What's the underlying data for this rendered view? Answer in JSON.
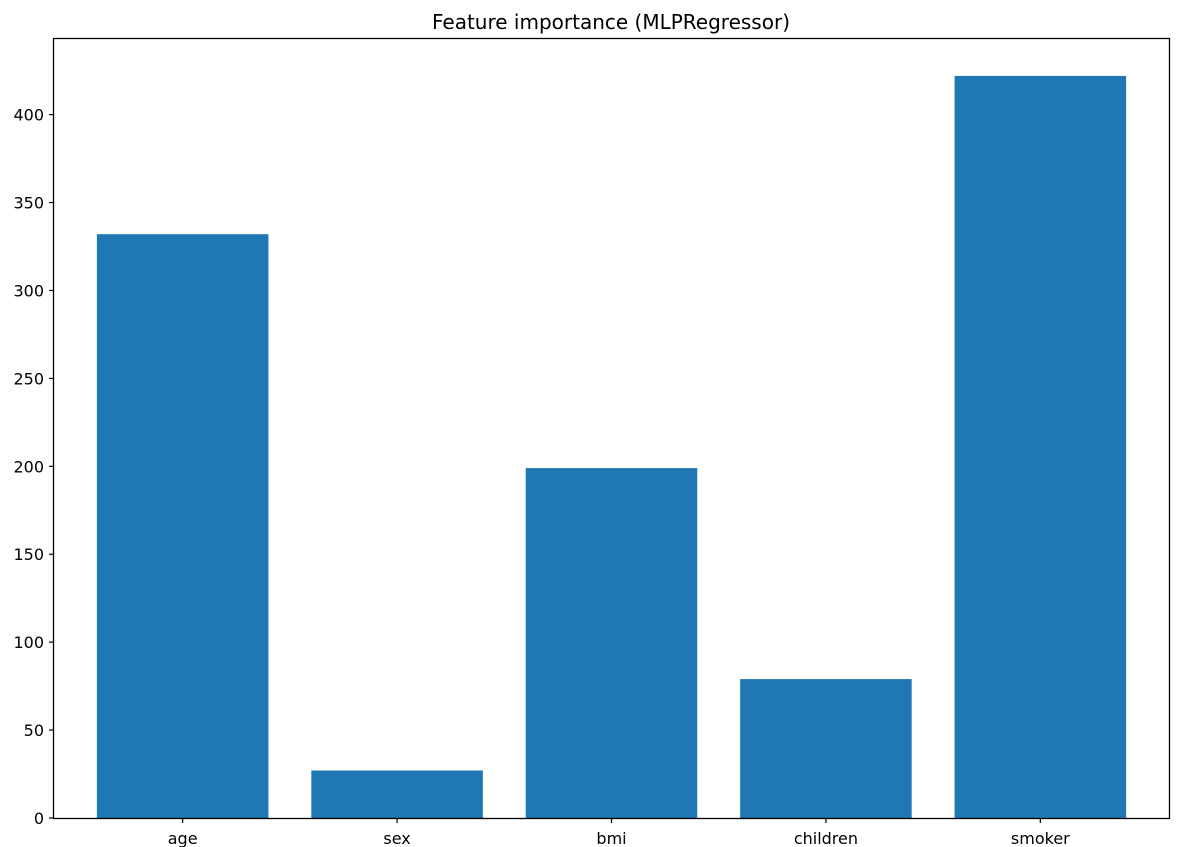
{
  "chart_data": {
    "type": "bar",
    "title": "Feature importance (MLPRegressor)",
    "xlabel": "",
    "ylabel": "",
    "categories": [
      "age",
      "sex",
      "bmi",
      "children",
      "smoker"
    ],
    "values": [
      332,
      27,
      199,
      79,
      422
    ],
    "ylim": [
      0,
      443
    ],
    "yticks": [
      0,
      50,
      100,
      150,
      200,
      250,
      300,
      350,
      400
    ],
    "ytick_labels": [
      "0",
      "50",
      "100",
      "150",
      "200",
      "250",
      "300",
      "350",
      "400"
    ],
    "grid": false,
    "legend": "none",
    "bar_color": "#1f77b4"
  }
}
